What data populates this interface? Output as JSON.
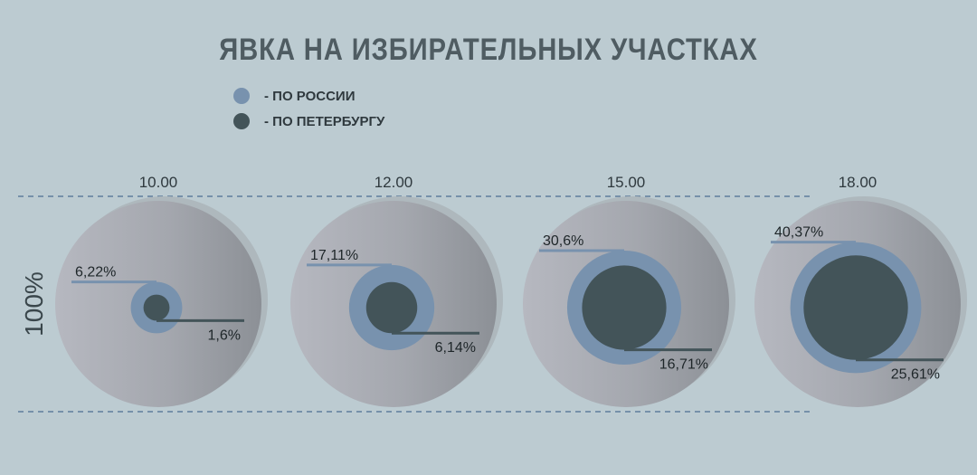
{
  "title": "ЯВКА НА ИЗБИРАТЕЛЬНЫХ УЧАСТКАХ",
  "legend": [
    {
      "label": "- ПО РОССИИ",
      "color": "#7892ae"
    },
    {
      "label": "- ПО ПЕТЕРБУРГУ",
      "color": "#435459"
    }
  ],
  "chart_data": {
    "type": "bubble",
    "title": "ЯВКА НА ИЗБИРАТЕЛЬНЫХ УЧАСТКАХ",
    "ylabel": "100%",
    "categories": [
      "10.00",
      "12.00",
      "15.00",
      "18.00"
    ],
    "series": [
      {
        "name": "- ПО РОССИИ",
        "values": [
          6.22,
          17.11,
          30.6,
          40.37
        ],
        "labels": [
          "6,22%",
          "17,11%",
          "30,6%",
          "40,37%"
        ],
        "color": "#7892ae"
      },
      {
        "name": "- ПО ПЕТЕРБУРГУ",
        "values": [
          1.6,
          6.14,
          16.71,
          25.61
        ],
        "labels": [
          "1,6%",
          "6,14%",
          "16,71%",
          "25,61%"
        ],
        "color": "#435459"
      }
    ],
    "max_value": 100,
    "reference_lines": "dashed lines marking 100%"
  }
}
